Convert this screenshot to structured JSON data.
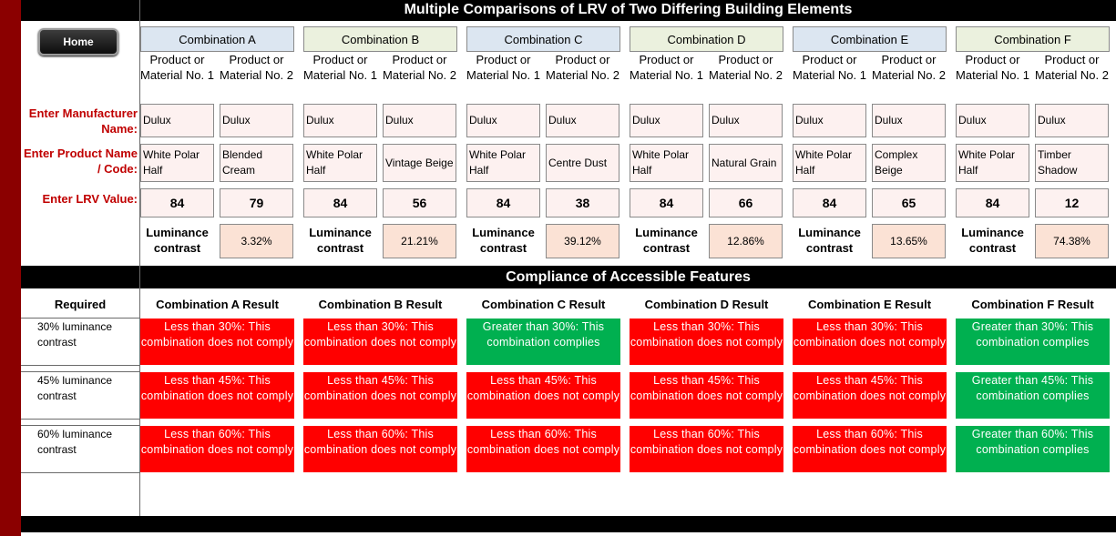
{
  "title": "Multiple Comparisons of LRV of Two Differing Building Elements",
  "home_label": "Home",
  "labels": {
    "manufacturer": "Enter Manufacturer Name:",
    "product": "Enter Product Name / Code:",
    "lrv": "Enter LRV Value:",
    "material1": "Product or Material No. 1",
    "material2": "Product or Material No. 2",
    "luminance": "Luminance contrast"
  },
  "combinations": [
    {
      "name": "Combination A",
      "m1": "Dulux",
      "m2": "Dulux",
      "p1": "White Polar Half",
      "p2": "Blended Cream",
      "lrv1": "84",
      "lrv2": "79",
      "contrast": "3.32%"
    },
    {
      "name": "Combination B",
      "m1": "Dulux",
      "m2": "Dulux",
      "p1": "White Polar Half",
      "p2": "Vintage Beige",
      "lrv1": "84",
      "lrv2": "56",
      "contrast": "21.21%"
    },
    {
      "name": "Combination C",
      "m1": "Dulux",
      "m2": "Dulux",
      "p1": "White Polar Half",
      "p2": "Centre Dust",
      "lrv1": "84",
      "lrv2": "38",
      "contrast": "39.12%"
    },
    {
      "name": "Combination D",
      "m1": "Dulux",
      "m2": "Dulux",
      "p1": "White Polar Half",
      "p2": "Natural Grain",
      "lrv1": "84",
      "lrv2": "66",
      "contrast": "12.86%"
    },
    {
      "name": "Combination E",
      "m1": "Dulux",
      "m2": "Dulux",
      "p1": "White Polar Half",
      "p2": "Complex Beige",
      "lrv1": "84",
      "lrv2": "65",
      "contrast": "13.65%"
    },
    {
      "name": "Combination F",
      "m1": "Dulux",
      "m2": "Dulux",
      "p1": "White Polar Half",
      "p2": "Timber Shadow",
      "lrv1": "84",
      "lrv2": "12",
      "contrast": "74.38%"
    }
  ],
  "compliance": {
    "title": "Compliance of Accessible Features",
    "required_label": "Required",
    "result_headers": [
      "Combination A Result",
      "Combination B Result",
      "Combination C Result",
      "Combination D Result",
      "Combination E Result",
      "Combination F Result"
    ],
    "rows": [
      {
        "label": "30% luminance contrast",
        "results": [
          {
            "text": "Less than 30%: This combination does not comply",
            "status": "fail"
          },
          {
            "text": "Less than 30%: This combination does not comply",
            "status": "fail"
          },
          {
            "text": "Greater than 30%: This combination complies",
            "status": "pass"
          },
          {
            "text": "Less than 30%: This combination does not comply",
            "status": "fail"
          },
          {
            "text": "Less than 30%: This combination does not comply",
            "status": "fail"
          },
          {
            "text": "Greater than 30%: This combination complies",
            "status": "pass"
          }
        ]
      },
      {
        "label": "45% luminance contrast",
        "results": [
          {
            "text": "Less than 45%: This combination does not comply",
            "status": "fail"
          },
          {
            "text": "Less than 45%: This combination does not comply",
            "status": "fail"
          },
          {
            "text": "Less than 45%: This combination does not comply",
            "status": "fail"
          },
          {
            "text": "Less than 45%: This combination does not comply",
            "status": "fail"
          },
          {
            "text": "Less than 45%: This combination does not comply",
            "status": "fail"
          },
          {
            "text": "Greater than 45%: This combination complies",
            "status": "pass"
          }
        ]
      },
      {
        "label": "60% luminance contrast",
        "results": [
          {
            "text": "Less than 60%: This combination does not comply",
            "status": "fail"
          },
          {
            "text": "Less than 60%: This combination does not comply",
            "status": "fail"
          },
          {
            "text": "Less than 60%: This combination does not comply",
            "status": "fail"
          },
          {
            "text": "Less than 60%: This combination does not comply",
            "status": "fail"
          },
          {
            "text": "Less than 60%: This combination does not comply",
            "status": "fail"
          },
          {
            "text": "Greater than 60%: This combination complies",
            "status": "pass"
          }
        ]
      }
    ]
  },
  "colors": {
    "fail": "#ff0000",
    "pass": "#00b050",
    "accent": "#8b0000"
  }
}
